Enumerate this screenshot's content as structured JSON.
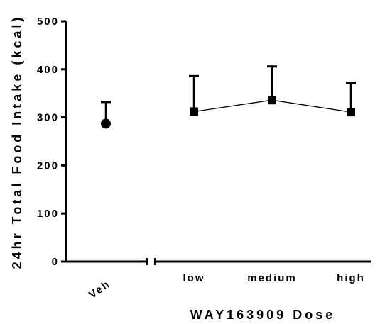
{
  "chart_data": {
    "type": "scatter",
    "title": "",
    "xlabel": "WAY163909 Dose",
    "ylabel": "24hr Total Food Intake (kcal)",
    "ylim": [
      0,
      500
    ],
    "yticks": [
      "0",
      "100",
      "200",
      "300",
      "400",
      "500"
    ],
    "categories": [
      "Veh",
      "low",
      "medium",
      "high"
    ],
    "grid": false,
    "legend": "none",
    "x_axis_break_after": "Veh",
    "series": [
      {
        "marker": "circle",
        "connected": false,
        "categories": [
          "Veh"
        ],
        "values": [
          287
        ],
        "error_upper": [
          45
        ]
      },
      {
        "marker": "square",
        "connected": true,
        "categories": [
          "low",
          "medium",
          "high"
        ],
        "values": [
          312,
          336,
          311
        ],
        "error_upper": [
          74,
          70,
          61
        ]
      }
    ],
    "colors": {
      "ink": "#000000",
      "background": "#ffffff"
    }
  }
}
